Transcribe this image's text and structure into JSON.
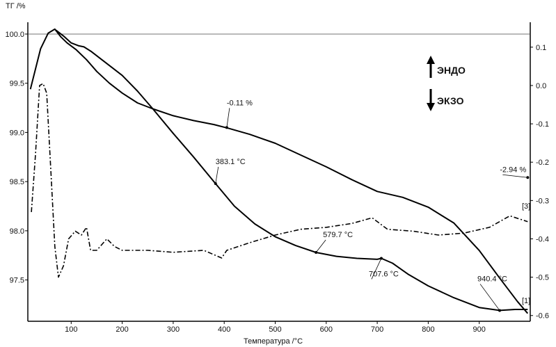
{
  "chart_data": {
    "type": "line",
    "title": "",
    "y_left_label": "TГ /%",
    "xlabel": "Температура /°C",
    "x_range": [
      15,
      1000
    ],
    "y_left_range": [
      97.08,
      100.12
    ],
    "y_right_range": [
      -0.615,
      0.165
    ],
    "x_ticks": [
      100,
      200,
      300,
      400,
      500,
      600,
      700,
      800,
      900
    ],
    "y_left_ticks": [
      {
        "v": 97.5,
        "label": "97.5"
      },
      {
        "v": 98.0,
        "label": "98.0"
      },
      {
        "v": 98.5,
        "label": "98.5"
      },
      {
        "v": 99.0,
        "label": "99.0"
      },
      {
        "v": 99.5,
        "label": "99.5"
      },
      {
        "v": 100.0,
        "label": "100.0"
      }
    ],
    "y_right_ticks": [
      {
        "v": 0.1,
        "label": "0.1"
      },
      {
        "v": 0.0,
        "label": "0.0"
      },
      {
        "v": -0.1,
        "label": "-0.1"
      },
      {
        "v": -0.2,
        "label": "-0.2"
      },
      {
        "v": -0.3,
        "label": "-0.3"
      },
      {
        "v": -0.4,
        "label": "-0.4"
      },
      {
        "v": -0.5,
        "label": "-0.5"
      },
      {
        "v": -0.6,
        "label": "-0.6"
      }
    ],
    "legend": {
      "endo": "ЭНДО",
      "exo": "ЭКЗО"
    },
    "series": [
      {
        "style": "solid",
        "axis": "left",
        "points": [
          [
            20,
            99.44
          ],
          [
            40,
            99.85
          ],
          [
            55,
            100.01
          ],
          [
            68,
            100.05
          ],
          [
            80,
            99.97
          ],
          [
            92,
            99.91
          ],
          [
            110,
            99.84
          ],
          [
            130,
            99.74
          ],
          [
            150,
            99.62
          ],
          [
            175,
            99.5
          ],
          [
            200,
            99.4
          ],
          [
            230,
            99.3
          ],
          [
            260,
            99.24
          ],
          [
            300,
            99.17
          ],
          [
            340,
            99.12
          ],
          [
            380,
            99.08
          ],
          [
            410,
            99.04
          ],
          [
            450,
            98.98
          ],
          [
            500,
            98.89
          ],
          [
            550,
            98.77
          ],
          [
            600,
            98.65
          ],
          [
            650,
            98.52
          ],
          [
            700,
            98.4
          ],
          [
            750,
            98.34
          ],
          [
            800,
            98.24
          ],
          [
            850,
            98.08
          ],
          [
            900,
            97.8
          ],
          [
            940,
            97.52
          ],
          [
            975,
            97.28
          ],
          [
            995,
            97.16
          ]
        ]
      },
      {
        "style": "solid",
        "axis": "left",
        "points": [
          [
            70,
            100.04
          ],
          [
            85,
            99.98
          ],
          [
            100,
            99.91
          ],
          [
            115,
            99.88
          ],
          [
            125,
            99.87
          ],
          [
            140,
            99.82
          ],
          [
            160,
            99.74
          ],
          [
            180,
            99.66
          ],
          [
            200,
            99.58
          ],
          [
            230,
            99.42
          ],
          [
            260,
            99.24
          ],
          [
            300,
            98.99
          ],
          [
            340,
            98.75
          ],
          [
            383,
            98.48
          ],
          [
            420,
            98.25
          ],
          [
            460,
            98.07
          ],
          [
            500,
            97.94
          ],
          [
            540,
            97.85
          ],
          [
            580,
            97.78
          ],
          [
            620,
            97.74
          ],
          [
            660,
            97.72
          ],
          [
            700,
            97.71
          ],
          [
            708,
            97.72
          ],
          [
            730,
            97.67
          ],
          [
            760,
            97.56
          ],
          [
            800,
            97.44
          ],
          [
            850,
            97.32
          ],
          [
            900,
            97.22
          ],
          [
            940,
            97.19
          ],
          [
            970,
            97.2
          ],
          [
            995,
            97.2
          ]
        ]
      },
      {
        "style": "dashdot",
        "axis": "right",
        "points": [
          [
            22,
            -0.33
          ],
          [
            30,
            -0.18
          ],
          [
            38,
            0.0
          ],
          [
            45,
            0.005
          ],
          [
            52,
            -0.02
          ],
          [
            60,
            -0.22
          ],
          [
            68,
            -0.42
          ],
          [
            75,
            -0.5
          ],
          [
            85,
            -0.47
          ],
          [
            95,
            -0.4
          ],
          [
            108,
            -0.38
          ],
          [
            120,
            -0.39
          ],
          [
            130,
            -0.37
          ],
          [
            138,
            -0.43
          ],
          [
            150,
            -0.43
          ],
          [
            170,
            -0.4
          ],
          [
            185,
            -0.42
          ],
          [
            200,
            -0.43
          ],
          [
            250,
            -0.43
          ],
          [
            300,
            -0.435
          ],
          [
            360,
            -0.43
          ],
          [
            395,
            -0.45
          ],
          [
            405,
            -0.43
          ],
          [
            450,
            -0.41
          ],
          [
            500,
            -0.39
          ],
          [
            550,
            -0.375
          ],
          [
            600,
            -0.37
          ],
          [
            650,
            -0.36
          ],
          [
            690,
            -0.345
          ],
          [
            720,
            -0.375
          ],
          [
            770,
            -0.38
          ],
          [
            820,
            -0.39
          ],
          [
            870,
            -0.385
          ],
          [
            920,
            -0.37
          ],
          [
            960,
            -0.34
          ],
          [
            995,
            -0.355
          ]
        ]
      }
    ],
    "annotations": [
      {
        "text": "-0.11 %",
        "x": 405,
        "y": 99.05,
        "y_axis": "left"
      },
      {
        "text": "383.1 °C",
        "x": 383,
        "y": 98.48,
        "y_axis": "left"
      },
      {
        "text": "579.7 °C",
        "x": 580,
        "y": 97.78,
        "y_axis": "left"
      },
      {
        "text": "707.6 °C",
        "x": 708,
        "y": 97.72,
        "y_axis": "left"
      },
      {
        "text": "940.4 °C",
        "x": 940,
        "y": 97.19,
        "y_axis": "left"
      },
      {
        "text": "-2.94 %",
        "x": 995,
        "y": -0.24,
        "y_axis": "right"
      }
    ],
    "side_marks": [
      "[3]",
      "[1]"
    ]
  }
}
